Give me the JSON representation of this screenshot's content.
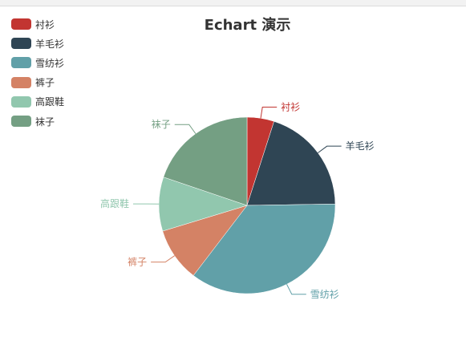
{
  "chart_data": {
    "type": "pie",
    "title": "Echart 演示",
    "categories": [
      "衬衫",
      "羊毛衫",
      "雪纺衫",
      "裤子",
      "高跟鞋",
      "袜子"
    ],
    "values": [
      5,
      20,
      36,
      10,
      10,
      20
    ],
    "colors": [
      "#c23531",
      "#2f4554",
      "#61a0a8",
      "#d48265",
      "#91c7ae",
      "#749f83"
    ],
    "legend_position": "top-left"
  }
}
